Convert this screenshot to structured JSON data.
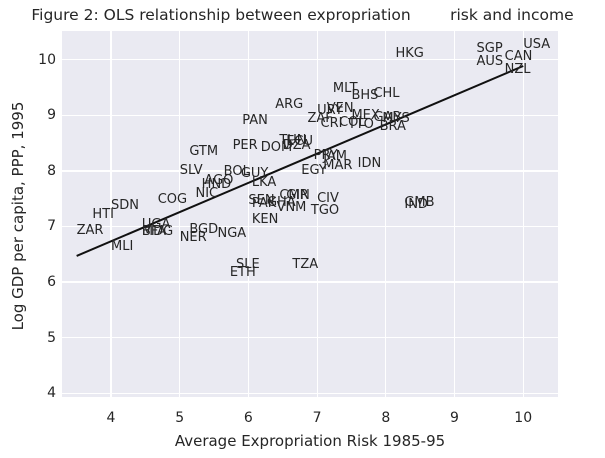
{
  "title": "Figure 2: OLS relationship between expropriation        risk and income",
  "chart_data": {
    "type": "scatter",
    "title": "Figure 2: OLS relationship between expropriation        risk and income",
    "xlabel": "Average Expropriation Risk 1985-95",
    "ylabel": "Log GDP per capita, PPP, 1995",
    "xlim": [
      3.287,
      10.506
    ],
    "ylim": [
      3.93,
      10.52
    ],
    "x_ticks": [
      4,
      5,
      6,
      7,
      8,
      9,
      10
    ],
    "y_ticks": [
      4,
      5,
      6,
      7,
      8,
      9,
      10
    ],
    "grid": true,
    "legend": "none",
    "marker": "none (text annotations only)",
    "colors": {
      "plot_background": "#eaeaf2",
      "gridline": "#ffffff",
      "text": "#262626",
      "regression_line": "#111111",
      "figure_background": "#ffffff"
    },
    "regression_line": {
      "x1": 3.5,
      "y1": 6.47,
      "x2": 10.0,
      "y2": 9.89
    },
    "points": [
      {
        "label": "ZAR",
        "x": 3.5,
        "y": 6.87
      },
      {
        "label": "HTI",
        "x": 3.73,
        "y": 7.15
      },
      {
        "label": "MLI",
        "x": 4.0,
        "y": 6.57
      },
      {
        "label": "SDN",
        "x": 4.0,
        "y": 7.31
      },
      {
        "label": "BFA",
        "x": 4.45,
        "y": 6.85
      },
      {
        "label": "MDG",
        "x": 4.45,
        "y": 6.84
      },
      {
        "label": "UGA",
        "x": 4.45,
        "y": 6.97
      },
      {
        "label": "COG",
        "x": 4.68,
        "y": 7.42
      },
      {
        "label": "NER",
        "x": 5.0,
        "y": 6.73
      },
      {
        "label": "SLV",
        "x": 5.0,
        "y": 7.95
      },
      {
        "label": "BGD",
        "x": 5.14,
        "y": 6.88
      },
      {
        "label": "GTM",
        "x": 5.14,
        "y": 8.29
      },
      {
        "label": "NIC",
        "x": 5.23,
        "y": 7.54
      },
      {
        "label": "HND",
        "x": 5.32,
        "y": 7.69
      },
      {
        "label": "AGO",
        "x": 5.36,
        "y": 7.77
      },
      {
        "label": "NGA",
        "x": 5.55,
        "y": 6.81
      },
      {
        "label": "BOL",
        "x": 5.64,
        "y": 7.93
      },
      {
        "label": "ETH",
        "x": 5.73,
        "y": 6.11
      },
      {
        "label": "PER",
        "x": 5.77,
        "y": 8.4
      },
      {
        "label": "SLE",
        "x": 5.82,
        "y": 6.25
      },
      {
        "label": "GUY",
        "x": 5.89,
        "y": 7.9
      },
      {
        "label": "PAN",
        "x": 5.91,
        "y": 8.84
      },
      {
        "label": "SEN",
        "x": 6.0,
        "y": 7.4
      },
      {
        "label": "KEN",
        "x": 6.05,
        "y": 7.06
      },
      {
        "label": "LKA",
        "x": 6.05,
        "y": 7.73
      },
      {
        "label": "PAK",
        "x": 6.05,
        "y": 7.35
      },
      {
        "label": "DOM",
        "x": 6.18,
        "y": 8.36
      },
      {
        "label": "GHA",
        "x": 6.27,
        "y": 7.37
      },
      {
        "label": "ARG",
        "x": 6.39,
        "y": 9.13
      },
      {
        "label": "VNM",
        "x": 6.41,
        "y": 7.28
      },
      {
        "label": "CMR",
        "x": 6.45,
        "y": 7.5
      },
      {
        "label": "TUN",
        "x": 6.45,
        "y": 8.48
      },
      {
        "label": "DZA",
        "x": 6.5,
        "y": 8.39
      },
      {
        "label": "ECU",
        "x": 6.55,
        "y": 8.47
      },
      {
        "label": "GIN",
        "x": 6.55,
        "y": 7.49
      },
      {
        "label": "TZA",
        "x": 6.64,
        "y": 6.25
      },
      {
        "label": "EGY",
        "x": 6.77,
        "y": 7.95
      },
      {
        "label": "ZAF",
        "x": 6.86,
        "y": 8.89
      },
      {
        "label": "TGO",
        "x": 6.91,
        "y": 7.22
      },
      {
        "label": "PRY",
        "x": 6.95,
        "y": 8.21
      },
      {
        "label": "CIV",
        "x": 7.0,
        "y": 7.44
      },
      {
        "label": "URY",
        "x": 7.0,
        "y": 9.03
      },
      {
        "label": "CRI",
        "x": 7.05,
        "y": 8.79
      },
      {
        "label": "JAM",
        "x": 7.09,
        "y": 8.19
      },
      {
        "label": "MAR",
        "x": 7.09,
        "y": 8.04
      },
      {
        "label": "VEN",
        "x": 7.14,
        "y": 9.07
      },
      {
        "label": "MLT",
        "x": 7.23,
        "y": 9.43
      },
      {
        "label": "COL",
        "x": 7.32,
        "y": 8.81
      },
      {
        "label": "TTO",
        "x": 7.45,
        "y": 8.77
      },
      {
        "label": "BHS",
        "x": 7.5,
        "y": 9.29
      },
      {
        "label": "MEX",
        "x": 7.5,
        "y": 8.94
      },
      {
        "label": "IDN",
        "x": 7.59,
        "y": 8.07
      },
      {
        "label": "CHL",
        "x": 7.82,
        "y": 9.34
      },
      {
        "label": "GAB",
        "x": 7.82,
        "y": 8.9
      },
      {
        "label": "BRA",
        "x": 7.91,
        "y": 8.73
      },
      {
        "label": "MYS",
        "x": 7.95,
        "y": 8.89
      },
      {
        "label": "HKG",
        "x": 8.14,
        "y": 10.05
      },
      {
        "label": "GMB",
        "x": 8.27,
        "y": 7.37
      },
      {
        "label": "IND",
        "x": 8.27,
        "y": 7.33
      },
      {
        "label": "AUS",
        "x": 9.32,
        "y": 9.9
      },
      {
        "label": "SGP",
        "x": 9.32,
        "y": 10.15
      },
      {
        "label": "CAN",
        "x": 9.73,
        "y": 9.99
      },
      {
        "label": "NZL",
        "x": 9.73,
        "y": 9.76
      },
      {
        "label": "USA",
        "x": 10.0,
        "y": 10.22
      }
    ]
  }
}
